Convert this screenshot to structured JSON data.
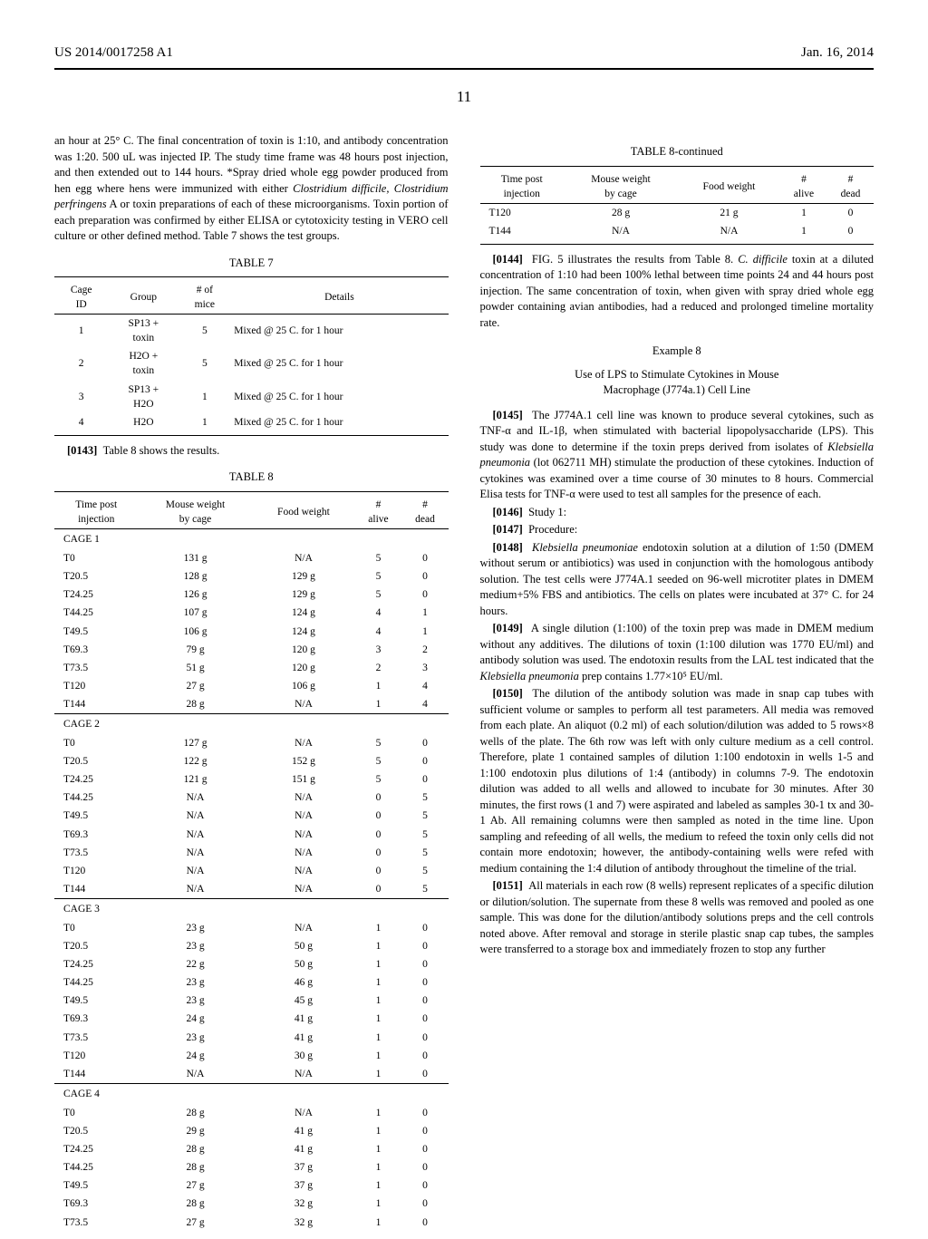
{
  "header": {
    "left": "US 2014/0017258 A1",
    "right": "Jan. 16, 2014"
  },
  "page_number": "11",
  "left_col": {
    "intro_text": "an hour at 25° C. The final concentration of toxin is 1:10, and antibody concentration was 1:20. 500 uL was injected IP. The study time frame was 48 hours post injection, and then extended out to 144 hours. *Spray dried whole egg powder produced from hen egg where hens were immunized with either ",
    "intro_italic": "Clostridium difficile, Clostridium perfringens",
    "intro_text2": " A or toxin preparations of each of these microorganisms. Toxin portion of each preparation was confirmed by either ELISA or cytotoxicity testing in VERO cell culture or other defined method. Table 7 shows the test groups.",
    "table7_title": "TABLE 7",
    "table7": {
      "headers": [
        "Cage\nID",
        "Group",
        "# of\nmice",
        "Details"
      ],
      "rows": [
        [
          "1",
          "SP13 +\ntoxin",
          "5",
          "Mixed @ 25 C. for 1 hour"
        ],
        [
          "2",
          "H2O +\ntoxin",
          "5",
          "Mixed @ 25 C. for 1 hour"
        ],
        [
          "3",
          "SP13 +\nH2O",
          "1",
          "Mixed @ 25 C. for 1 hour"
        ],
        [
          "4",
          "H2O",
          "1",
          "Mixed @ 25 C. for 1 hour"
        ]
      ]
    },
    "para_0143_num": "[0143]",
    "para_0143": "Table 8 shows the results.",
    "table8_title": "TABLE 8",
    "table8": {
      "headers": [
        "Time post\ninjection",
        "Mouse weight\nby cage",
        "Food weight",
        "#\nalive",
        "#\ndead"
      ],
      "cages": [
        {
          "label": "CAGE 1",
          "rows": [
            [
              "T0",
              "131 g",
              "N/A",
              "5",
              "0"
            ],
            [
              "T20.5",
              "128 g",
              "129 g",
              "5",
              "0"
            ],
            [
              "T24.25",
              "126 g",
              "129 g",
              "5",
              "0"
            ],
            [
              "T44.25",
              "107 g",
              "124 g",
              "4",
              "1"
            ],
            [
              "T49.5",
              "106 g",
              "124 g",
              "4",
              "1"
            ],
            [
              "T69.3",
              "79 g",
              "120 g",
              "3",
              "2"
            ],
            [
              "T73.5",
              "51 g",
              "120 g",
              "2",
              "3"
            ],
            [
              "T120",
              "27 g",
              "106 g",
              "1",
              "4"
            ],
            [
              "T144",
              "28 g",
              "N/A",
              "1",
              "4"
            ]
          ]
        },
        {
          "label": "CAGE 2",
          "rows": [
            [
              "T0",
              "127 g",
              "N/A",
              "5",
              "0"
            ],
            [
              "T20.5",
              "122 g",
              "152 g",
              "5",
              "0"
            ],
            [
              "T24.25",
              "121 g",
              "151 g",
              "5",
              "0"
            ],
            [
              "T44.25",
              "N/A",
              "N/A",
              "0",
              "5"
            ],
            [
              "T49.5",
              "N/A",
              "N/A",
              "0",
              "5"
            ],
            [
              "T69.3",
              "N/A",
              "N/A",
              "0",
              "5"
            ],
            [
              "T73.5",
              "N/A",
              "N/A",
              "0",
              "5"
            ],
            [
              "T120",
              "N/A",
              "N/A",
              "0",
              "5"
            ],
            [
              "T144",
              "N/A",
              "N/A",
              "0",
              "5"
            ]
          ]
        },
        {
          "label": "CAGE 3",
          "rows": [
            [
              "T0",
              "23 g",
              "N/A",
              "1",
              "0"
            ],
            [
              "T20.5",
              "23 g",
              "50 g",
              "1",
              "0"
            ],
            [
              "T24.25",
              "22 g",
              "50 g",
              "1",
              "0"
            ],
            [
              "T44.25",
              "23 g",
              "46 g",
              "1",
              "0"
            ],
            [
              "T49.5",
              "23 g",
              "45 g",
              "1",
              "0"
            ],
            [
              "T69.3",
              "24 g",
              "41 g",
              "1",
              "0"
            ],
            [
              "T73.5",
              "23 g",
              "41 g",
              "1",
              "0"
            ],
            [
              "T120",
              "24 g",
              "30 g",
              "1",
              "0"
            ],
            [
              "T144",
              "N/A",
              "N/A",
              "1",
              "0"
            ]
          ]
        },
        {
          "label": "CAGE 4",
          "rows": [
            [
              "T0",
              "28 g",
              "N/A",
              "1",
              "0"
            ],
            [
              "T20.5",
              "29 g",
              "41 g",
              "1",
              "0"
            ],
            [
              "T24.25",
              "28 g",
              "41 g",
              "1",
              "0"
            ],
            [
              "T44.25",
              "28 g",
              "37 g",
              "1",
              "0"
            ],
            [
              "T49.5",
              "27 g",
              "37 g",
              "1",
              "0"
            ],
            [
              "T69.3",
              "28 g",
              "32 g",
              "1",
              "0"
            ],
            [
              "T73.5",
              "27 g",
              "32 g",
              "1",
              "0"
            ]
          ]
        }
      ]
    }
  },
  "right_col": {
    "table8c_title": "TABLE 8-continued",
    "table8c": {
      "headers": [
        "Time post\ninjection",
        "Mouse weight\nby cage",
        "Food weight",
        "#\nalive",
        "#\ndead"
      ],
      "rows": [
        [
          "T120",
          "28 g",
          "21 g",
          "1",
          "0"
        ],
        [
          "T144",
          "N/A",
          "N/A",
          "1",
          "0"
        ]
      ]
    },
    "para_0144_num": "[0144]",
    "para_0144_a": "FIG. 5 illustrates the results from Table 8. ",
    "para_0144_italic": "C. difficile",
    "para_0144_b": " toxin at a diluted concentration of 1:10 had been 100% lethal between time points 24 and 44 hours post injection. The same concentration of toxin, when given with spray dried whole egg powder containing avian antibodies, had a reduced and prolonged timeline mortality rate.",
    "example8_title": "Example 8",
    "example8_sub": "Use of LPS to Stimulate Cytokines in Mouse\nMacrophage (J774a.1) Cell Line",
    "para_0145_num": "[0145]",
    "para_0145_a": "The J774A.1 cell line was known to produce several cytokines, such as TNF-α and IL-1β, when stimulated with bacterial lipopolysaccharide (LPS). This study was done to determine if the toxin preps derived from isolates of ",
    "para_0145_italic": "Klebsiella pneumonia",
    "para_0145_b": " (lot 062711 MH) stimulate the production of these cytokines. Induction of cytokines was examined over a time course of 30 minutes to 8 hours. Commercial Elisa tests for TNF-α were used to test all samples for the presence of each.",
    "para_0146_num": "[0146]",
    "para_0146": "Study 1:",
    "para_0147_num": "[0147]",
    "para_0147": "Procedure:",
    "para_0148_num": "[0148]",
    "para_0148_italic": "Klebsiella pneumoniae",
    "para_0148": " endotoxin solution at a dilution of 1:50 (DMEM without serum or antibiotics) was used in conjunction with the homologous antibody solution. The test cells were J774A.1 seeded on 96-well microtiter plates in DMEM medium+5% FBS and antibiotics. The cells on plates were incubated at 37° C. for 24 hours.",
    "para_0149_num": "[0149]",
    "para_0149": "A single dilution (1:100) of the toxin prep was made in DMEM medium without any additives. The dilutions of toxin (1:100 dilution was 1770 EU/ml) and antibody solution was used. The endotoxin results from the LAL test indicated that the ",
    "para_0149_italic": "Klebsiella pneumonia",
    "para_0149_b": " prep contains 1.77×10⁵ EU/ml.",
    "para_0150_num": "[0150]",
    "para_0150": "The dilution of the antibody solution was made in snap cap tubes with sufficient volume or samples to perform all test parameters. All media was removed from each plate. An aliquot (0.2 ml) of each solution/dilution was added to 5 rows×8 wells of the plate. The 6th row was left with only culture medium as a cell control. Therefore, plate 1 contained samples of dilution 1:100 endotoxin in wells 1-5 and 1:100 endotoxin plus dilutions of 1:4 (antibody) in columns 7-9. The endotoxin dilution was added to all wells and allowed to incubate for 30 minutes. After 30 minutes, the first rows (1 and 7) were aspirated and labeled as samples 30-1 tx and 30-1 Ab. All remaining columns were then sampled as noted in the time line. Upon sampling and refeeding of all wells, the medium to refeed the toxin only cells did not contain more endotoxin; however, the antibody-containing wells were refed with medium containing the 1:4 dilution of antibody throughout the timeline of the trial.",
    "para_0151_num": "[0151]",
    "para_0151": "All materials in each row (8 wells) represent replicates of a specific dilution or dilution/solution. The supernate from these 8 wells was removed and pooled as one sample. This was done for the dilution/antibody solutions preps and the cell controls noted above. After removal and storage in sterile plastic snap cap tubes, the samples were transferred to a storage box and immediately frozen to stop any further"
  }
}
